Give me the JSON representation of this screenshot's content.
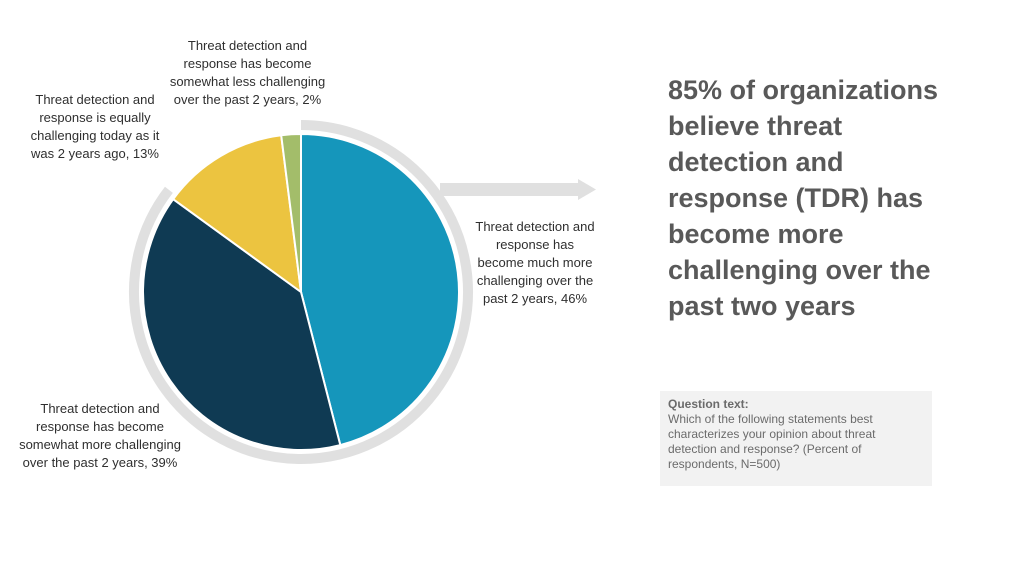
{
  "chart_data": {
    "type": "pie",
    "slices": [
      {
        "label": "Threat detection and response has become much more challenging over the past 2 years, 46%",
        "value": 46,
        "color": "#1596bb"
      },
      {
        "label": "Threat detection and response has become somewhat more challenging over the past 2 years, 39%",
        "value": 39,
        "color": "#0f3a53"
      },
      {
        "label": "Threat detection and response is equally challenging today as it was 2 years ago, 13%",
        "value": 13,
        "color": "#ecc440"
      },
      {
        "label": "Threat detection and response has become somewhat less challenging over the past 2 years, 2%",
        "value": 2,
        "color": "#a3bd6a"
      }
    ],
    "direction": "clockwise from top"
  },
  "headline": "85% of organizations believe threat detection and response (TDR) has become more challenging over the past two years",
  "question": {
    "title": "Question text:",
    "text": "Which of the following statements best characterizes your opinion about threat detection and response? (Percent of respondents, N=500)"
  }
}
